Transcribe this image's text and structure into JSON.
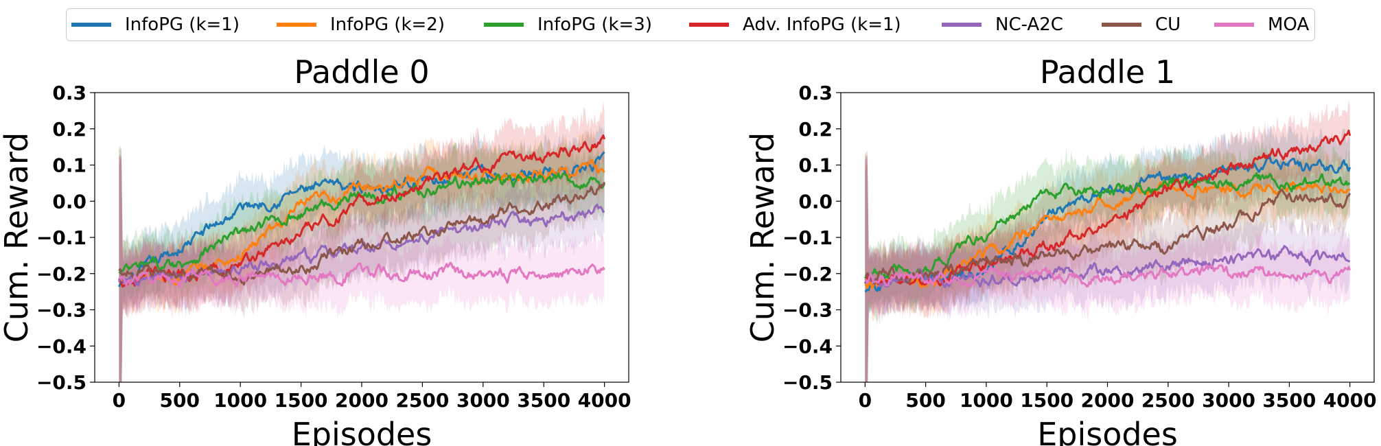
{
  "legend": [
    {
      "label": "InfoPG (k=1)",
      "color": "#1f77b4"
    },
    {
      "label": "InfoPG (k=2)",
      "color": "#ff7f0e"
    },
    {
      "label": "InfoPG (k=3)",
      "color": "#2ca02c"
    },
    {
      "label": "Adv. InfoPG (k=1)",
      "color": "#d62728"
    },
    {
      "label": "NC-A2C",
      "color": "#9467bd"
    },
    {
      "label": "CU",
      "color": "#8c564b"
    },
    {
      "label": "MOA",
      "color": "#e377c2"
    }
  ],
  "chart_data": [
    {
      "type": "line",
      "title": "Paddle 0",
      "xlabel": "Episodes",
      "ylabel": "Cum. Reward",
      "xlim": [
        -200,
        4200
      ],
      "ylim": [
        -0.5,
        0.3
      ],
      "xticks": [
        0,
        500,
        1000,
        1500,
        2000,
        2500,
        3000,
        3500,
        4000
      ],
      "yticks": [
        -0.5,
        -0.4,
        -0.3,
        -0.2,
        -0.1,
        0.0,
        0.1,
        0.2,
        0.3
      ],
      "xtick_labels": [
        "0",
        "500",
        "1000",
        "1500",
        "2000",
        "2500",
        "3000",
        "3500",
        "4000"
      ],
      "ytick_labels": [
        "−0.5",
        "−0.4",
        "−0.3",
        "−0.2",
        "−0.1",
        "0.0",
        "0.1",
        "0.2",
        "0.3"
      ],
      "grid": false,
      "x": [
        0,
        500,
        1000,
        1500,
        2000,
        2500,
        3000,
        3500,
        4000
      ],
      "series": [
        {
          "name": "InfoPG (k=1)",
          "values": [
            -0.24,
            -0.13,
            -0.02,
            0.03,
            0.04,
            0.06,
            0.07,
            0.08,
            0.1
          ]
        },
        {
          "name": "InfoPG (k=2)",
          "values": [
            -0.22,
            -0.21,
            -0.15,
            -0.02,
            0.04,
            0.07,
            0.07,
            0.08,
            0.09
          ]
        },
        {
          "name": "InfoPG (k=3)",
          "values": [
            -0.2,
            -0.17,
            -0.09,
            -0.03,
            0.02,
            0.03,
            0.06,
            0.05,
            0.06
          ]
        },
        {
          "name": "Adv. InfoPG (k=1)",
          "values": [
            -0.22,
            -0.2,
            -0.17,
            -0.09,
            -0.01,
            0.05,
            0.1,
            0.13,
            0.17
          ]
        },
        {
          "name": "NC-A2C",
          "values": [
            -0.23,
            -0.21,
            -0.19,
            -0.16,
            -0.13,
            -0.1,
            -0.07,
            -0.05,
            -0.02
          ]
        },
        {
          "name": "CU",
          "values": [
            -0.2,
            -0.2,
            -0.21,
            -0.18,
            -0.12,
            -0.09,
            -0.05,
            0.0,
            0.04
          ]
        },
        {
          "name": "MOA",
          "values": [
            -0.22,
            -0.21,
            -0.21,
            -0.21,
            -0.2,
            -0.2,
            -0.2,
            -0.2,
            -0.19
          ]
        }
      ]
    },
    {
      "type": "line",
      "title": "Paddle 1",
      "xlabel": "Episodes",
      "ylabel": "Cum. Reward",
      "xlim": [
        -200,
        4200
      ],
      "ylim": [
        -0.5,
        0.3
      ],
      "xticks": [
        0,
        500,
        1000,
        1500,
        2000,
        2500,
        3000,
        3500,
        4000
      ],
      "yticks": [
        -0.5,
        -0.4,
        -0.3,
        -0.2,
        -0.1,
        0.0,
        0.1,
        0.2,
        0.3
      ],
      "xtick_labels": [
        "0",
        "500",
        "1000",
        "1500",
        "2000",
        "2500",
        "3000",
        "3500",
        "4000"
      ],
      "ytick_labels": [
        "−0.5",
        "−0.4",
        "−0.3",
        "−0.2",
        "−0.1",
        "0.0",
        "0.1",
        "0.2",
        "0.3"
      ],
      "grid": false,
      "x": [
        0,
        500,
        1000,
        1500,
        2000,
        2500,
        3000,
        3500,
        4000
      ],
      "series": [
        {
          "name": "InfoPG (k=1)",
          "values": [
            -0.24,
            -0.21,
            -0.19,
            -0.04,
            0.03,
            0.07,
            0.08,
            0.1,
            0.1
          ]
        },
        {
          "name": "InfoPG (k=2)",
          "values": [
            -0.22,
            -0.22,
            -0.15,
            -0.05,
            0.0,
            0.04,
            0.03,
            0.04,
            0.05
          ]
        },
        {
          "name": "InfoPG (k=3)",
          "values": [
            -0.2,
            -0.19,
            -0.09,
            0.02,
            0.03,
            0.05,
            0.06,
            0.05,
            0.04
          ]
        },
        {
          "name": "Adv. InfoPG (k=1)",
          "values": [
            -0.22,
            -0.21,
            -0.18,
            -0.12,
            -0.07,
            0.03,
            0.09,
            0.14,
            0.17
          ]
        },
        {
          "name": "NC-A2C",
          "values": [
            -0.22,
            -0.21,
            -0.21,
            -0.2,
            -0.19,
            -0.17,
            -0.16,
            -0.15,
            -0.15
          ]
        },
        {
          "name": "CU",
          "values": [
            -0.2,
            -0.2,
            -0.17,
            -0.15,
            -0.13,
            -0.13,
            -0.06,
            0.01,
            0.01
          ]
        },
        {
          "name": "MOA",
          "values": [
            -0.21,
            -0.21,
            -0.21,
            -0.21,
            -0.21,
            -0.2,
            -0.2,
            -0.2,
            -0.2
          ]
        }
      ]
    }
  ]
}
